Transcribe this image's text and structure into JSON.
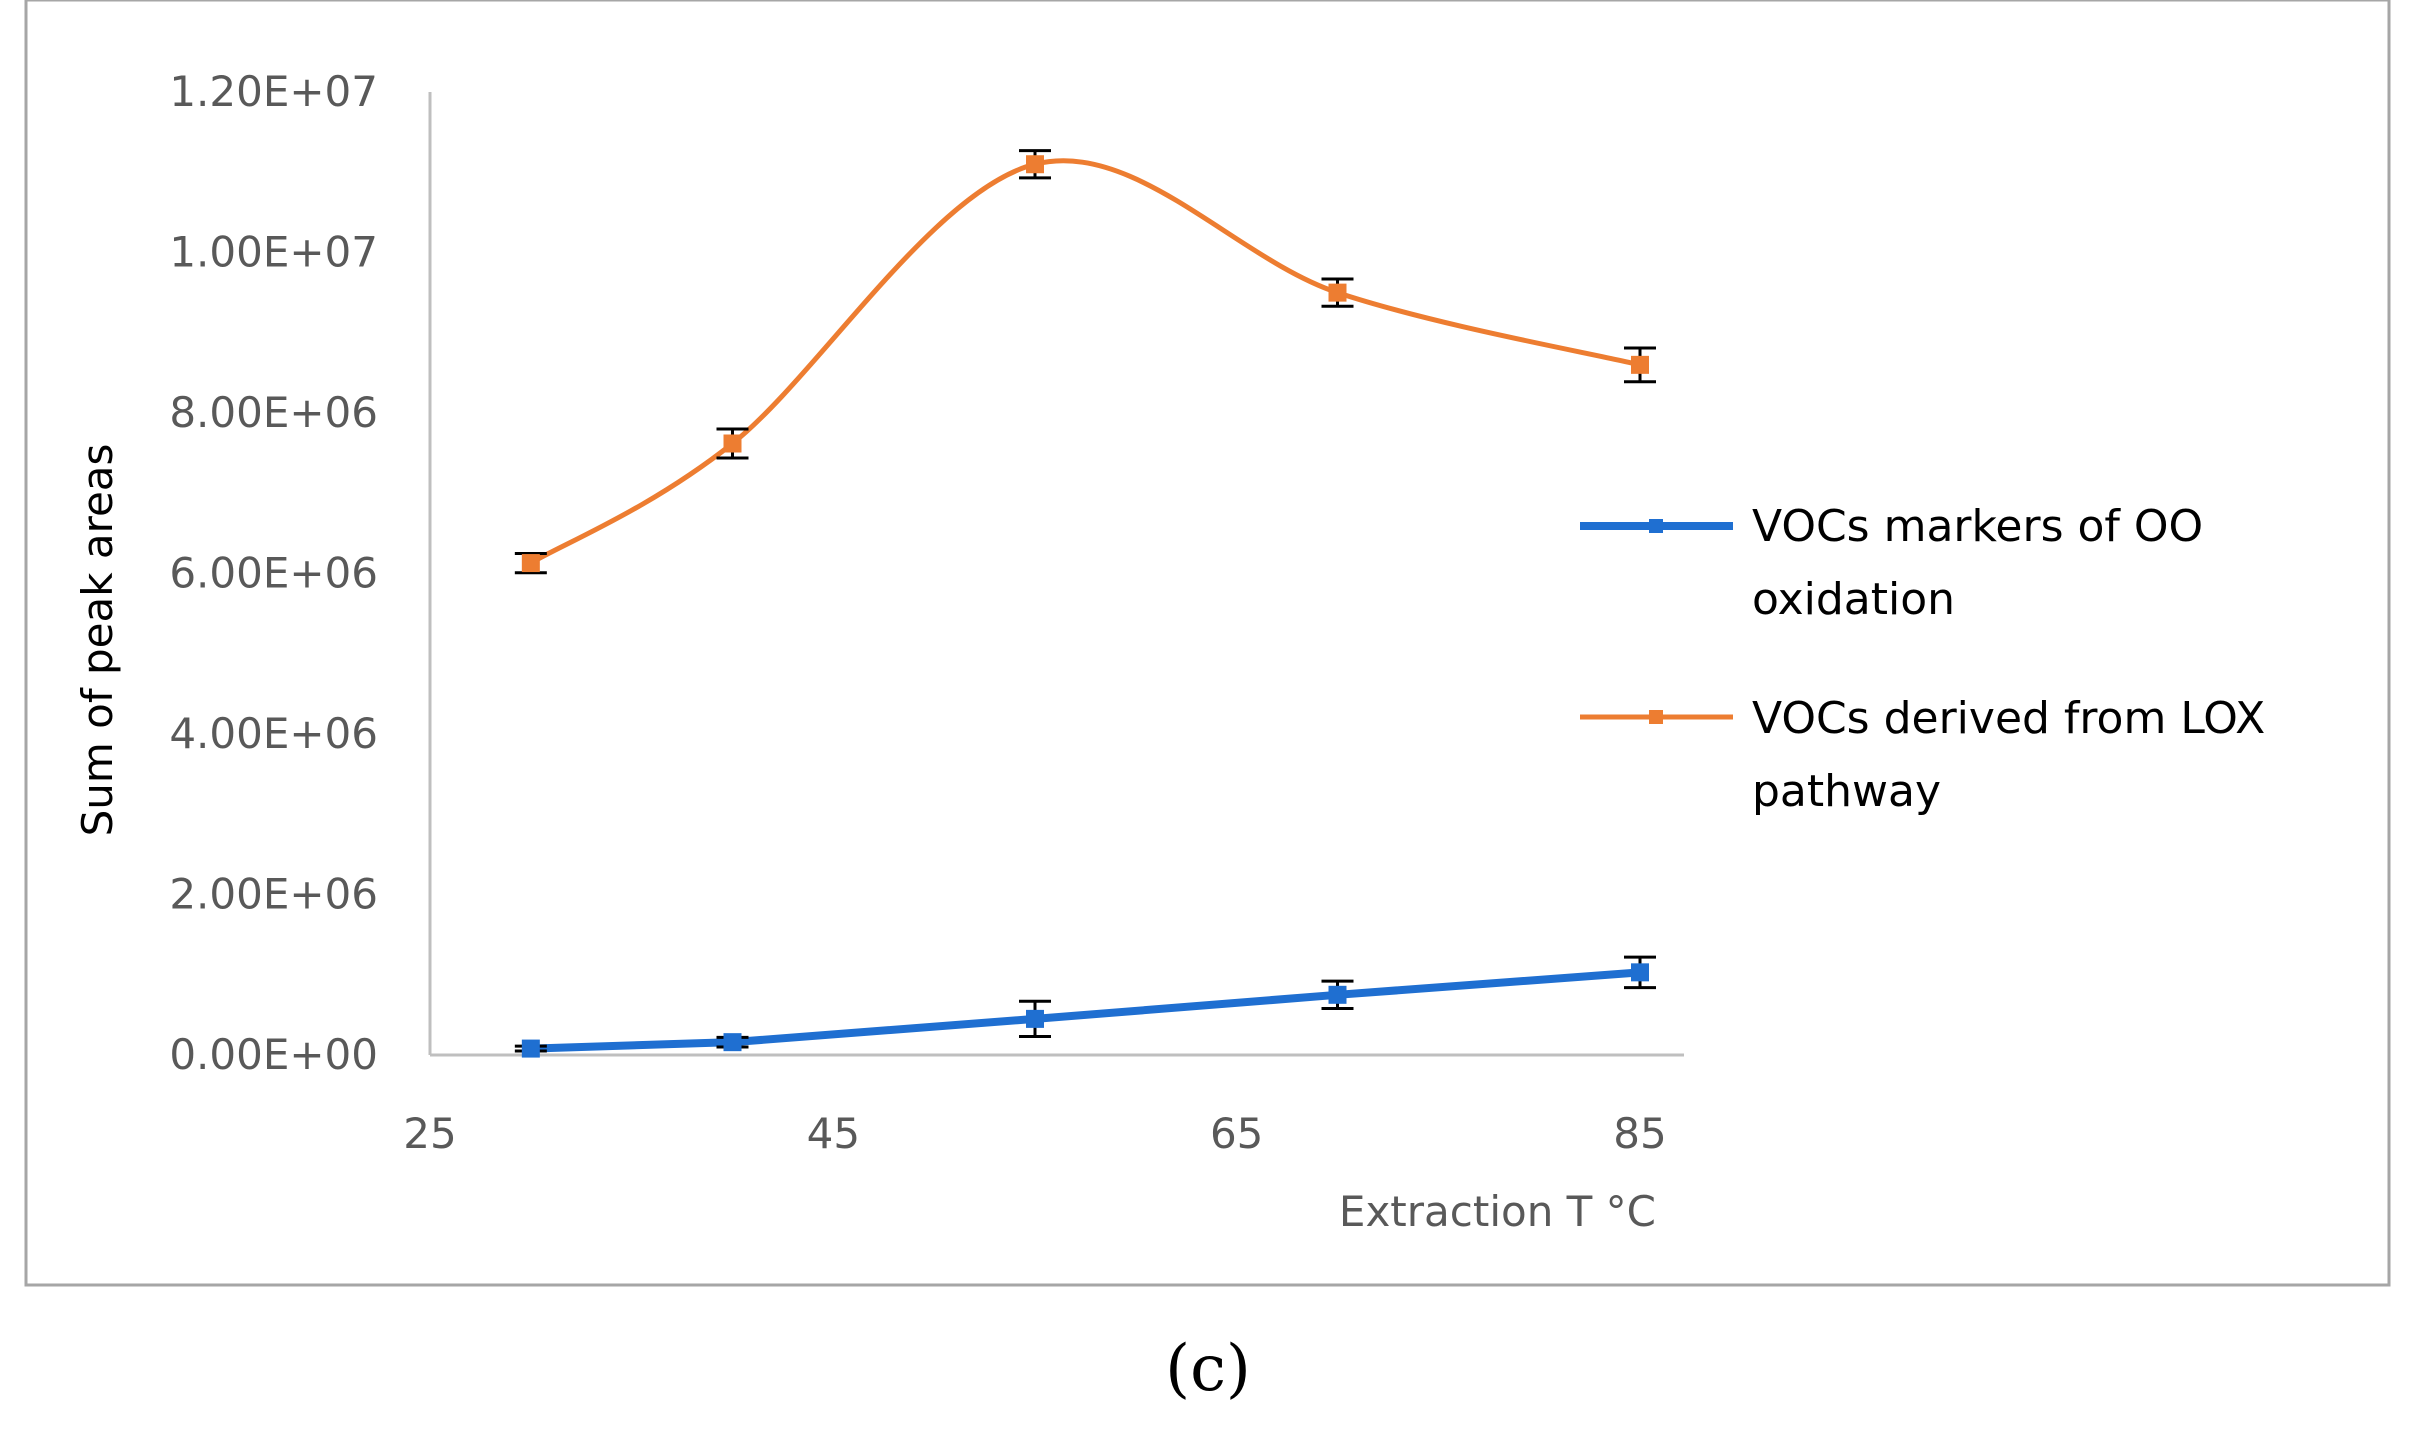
{
  "caption": "(c)",
  "chart_data": {
    "type": "line",
    "title": "",
    "xlabel": "Extraction T °C",
    "ylabel": "Sum of peak areas",
    "xlim": [
      25,
      85
    ],
    "ylim": [
      0,
      12000000
    ],
    "xticks": [
      25,
      45,
      65,
      85
    ],
    "xtick_labels": [
      "25",
      "45",
      "65",
      "85"
    ],
    "yticks": [
      0,
      2000000,
      4000000,
      6000000,
      8000000,
      10000000,
      12000000
    ],
    "ytick_labels": [
      "0.00E+00",
      "2.00E+06",
      "4.00E+06",
      "6.00E+06",
      "8.00E+06",
      "1.00E+07",
      "1.20E+07"
    ],
    "legend_position": "right",
    "series": [
      {
        "name_line1": "VOCs markers of OO",
        "name_line2": "oxidation",
        "color": "#1f6fd1",
        "smooth": false,
        "x": [
          30,
          40,
          55,
          70,
          85
        ],
        "values": [
          80000,
          160000,
          450000,
          750000,
          1030000
        ],
        "errors": [
          30000,
          60000,
          220000,
          170000,
          190000
        ]
      },
      {
        "name_line1": "VOCs derived from LOX",
        "name_line2": "pathway",
        "color": "#ed7d31",
        "smooth": true,
        "x": [
          30,
          40,
          55,
          70,
          85
        ],
        "values": [
          6130000,
          7620000,
          11100000,
          9500000,
          8600000
        ],
        "errors": [
          120000,
          180000,
          170000,
          170000,
          210000
        ]
      }
    ]
  }
}
